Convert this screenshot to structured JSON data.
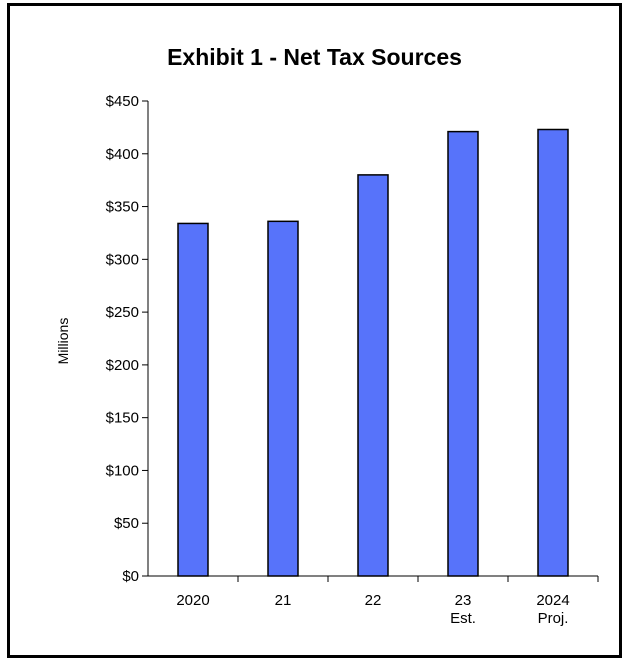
{
  "chart_data": {
    "type": "bar",
    "title": "Exhibit 1 - Net Tax Sources",
    "xlabel": "",
    "ylabel": "Millions",
    "categories": [
      "2020",
      "21",
      "22",
      "23 Est.",
      "2024 Proj."
    ],
    "category_lines": [
      [
        "2020"
      ],
      [
        "21"
      ],
      [
        "22"
      ],
      [
        "23",
        "Est."
      ],
      [
        "2024",
        "Proj."
      ]
    ],
    "values": [
      334,
      336,
      380,
      421,
      423
    ],
    "ylim": [
      0,
      450
    ],
    "yticks": [
      0,
      50,
      100,
      150,
      200,
      250,
      300,
      350,
      400,
      450
    ],
    "ytick_labels": [
      "$0",
      "$50",
      "$100",
      "$150",
      "$200",
      "$250",
      "$300",
      "$350",
      "$400",
      "$450"
    ],
    "grid": false,
    "legend": "none",
    "bar_color": "#5773FA",
    "bar_edge_color": "#000000"
  }
}
